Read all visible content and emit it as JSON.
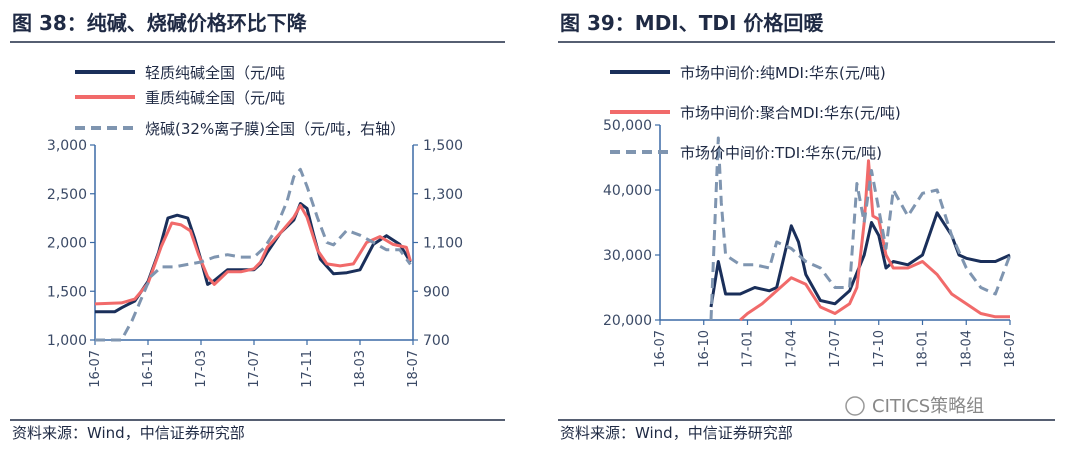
{
  "colors": {
    "navy": "#1a2f5a",
    "red": "#f16a6a",
    "grey": "#7f95b0",
    "axis": "#3b6aa5",
    "rule": "#1f2a44"
  },
  "watermark": "CITICS策略组",
  "chart_data": [
    {
      "type": "line",
      "title": "图 38：纯碱、烧碱价格环比下降",
      "source": "资料来源：Wind，中信证券研究部",
      "x": [
        "16-07",
        "16-11",
        "17-03",
        "17-07",
        "17-11",
        "18-03",
        "18-07"
      ],
      "ylim": [
        1000,
        3000
      ],
      "yticks": [
        "1,000",
        "1,500",
        "2,000",
        "2,500",
        "3,000"
      ],
      "y2lim": [
        700,
        1500
      ],
      "y2ticks": [
        "700",
        "900",
        "1,100",
        "1,300",
        "1,500"
      ],
      "legend": "top-left",
      "series": [
        {
          "name": "轻质纯碱全国（元/吨",
          "color": "navy",
          "dash": false,
          "axis": "left",
          "points": [
            [
              0,
              1290
            ],
            [
              1.5,
              1290
            ],
            [
              2,
              1330
            ],
            [
              3,
              1400
            ],
            [
              4,
              1600
            ],
            [
              4.8,
              1900
            ],
            [
              5.5,
              2250
            ],
            [
              6.2,
              2280
            ],
            [
              7,
              2250
            ],
            [
              7.5,
              2050
            ],
            [
              8,
              1820
            ],
            [
              8.5,
              1570
            ],
            [
              9,
              1610
            ],
            [
              10,
              1720
            ],
            [
              11,
              1720
            ],
            [
              12,
              1720
            ],
            [
              12.5,
              1780
            ],
            [
              13,
              1900
            ],
            [
              14,
              2100
            ],
            [
              15,
              2230
            ],
            [
              15.5,
              2400
            ],
            [
              16,
              2350
            ],
            [
              16.5,
              2080
            ],
            [
              17,
              1830
            ],
            [
              18,
              1680
            ],
            [
              19,
              1690
            ],
            [
              20,
              1720
            ],
            [
              21,
              1980
            ],
            [
              22,
              2070
            ],
            [
              23,
              1980
            ],
            [
              23.8,
              1800
            ]
          ]
        },
        {
          "name": "重质纯碱全国（元/吨",
          "color": "red",
          "dash": false,
          "axis": "left",
          "points": [
            [
              0,
              1370
            ],
            [
              2,
              1380
            ],
            [
              3,
              1420
            ],
            [
              4,
              1580
            ],
            [
              5,
              1960
            ],
            [
              5.8,
              2200
            ],
            [
              6.5,
              2180
            ],
            [
              7.2,
              2120
            ],
            [
              7.8,
              1880
            ],
            [
              8.5,
              1650
            ],
            [
              9,
              1570
            ],
            [
              10,
              1700
            ],
            [
              11,
              1700
            ],
            [
              12,
              1730
            ],
            [
              12.5,
              1800
            ],
            [
              13,
              1950
            ],
            [
              14,
              2100
            ],
            [
              15,
              2260
            ],
            [
              15.5,
              2380
            ],
            [
              16,
              2260
            ],
            [
              16.8,
              1920
            ],
            [
              17.5,
              1780
            ],
            [
              18.5,
              1760
            ],
            [
              19.5,
              1780
            ],
            [
              20.5,
              2000
            ],
            [
              21.5,
              2060
            ],
            [
              22.5,
              1980
            ],
            [
              23.5,
              1950
            ],
            [
              23.8,
              1810
            ]
          ]
        },
        {
          "name": "烧碱(32%离子膜)全国（元/吨，右轴）",
          "color": "grey",
          "dash": true,
          "axis": "right",
          "points": [
            [
              0,
              700
            ],
            [
              2,
              700
            ],
            [
              2.8,
              780
            ],
            [
              3.5,
              870
            ],
            [
              4.2,
              960
            ],
            [
              5,
              1000
            ],
            [
              6,
              1000
            ],
            [
              7,
              1010
            ],
            [
              8,
              1020
            ],
            [
              9,
              1040
            ],
            [
              10,
              1050
            ],
            [
              11,
              1040
            ],
            [
              12,
              1040
            ],
            [
              12.8,
              1080
            ],
            [
              13.5,
              1140
            ],
            [
              14.5,
              1270
            ],
            [
              15,
              1370
            ],
            [
              15.5,
              1400
            ],
            [
              16,
              1330
            ],
            [
              16.8,
              1200
            ],
            [
              17.5,
              1100
            ],
            [
              18,
              1090
            ],
            [
              19,
              1150
            ],
            [
              20,
              1130
            ],
            [
              21,
              1100
            ],
            [
              22,
              1070
            ],
            [
              23,
              1070
            ],
            [
              23.8,
              1010
            ]
          ]
        }
      ]
    },
    {
      "type": "line",
      "title": "图 39：MDI、TDI 价格回暖",
      "source": "资料来源：Wind，中信证券研究部",
      "x": [
        "16-07",
        "16-10",
        "17-01",
        "17-04",
        "17-07",
        "17-10",
        "18-01",
        "18-04",
        "18-07"
      ],
      "ylim": [
        20000,
        50000
      ],
      "yticks": [
        "20,000",
        "30,000",
        "40,000",
        "50,000"
      ],
      "legend": "top-left",
      "series": [
        {
          "name": "市场中间价:纯MDI:华东(元/吨)",
          "color": "navy",
          "dash": false,
          "points": [
            [
              3.5,
              22000
            ],
            [
              4,
              29000
            ],
            [
              4.5,
              24000
            ],
            [
              5.5,
              24000
            ],
            [
              6.5,
              25000
            ],
            [
              7.5,
              24500
            ],
            [
              8,
              25000
            ],
            [
              9,
              34500
            ],
            [
              9.5,
              32000
            ],
            [
              10,
              27000
            ],
            [
              11,
              23000
            ],
            [
              12,
              22500
            ],
            [
              13,
              24500
            ],
            [
              14,
              30000
            ],
            [
              14.5,
              35000
            ],
            [
              15,
              33000
            ],
            [
              15.5,
              28000
            ],
            [
              16,
              29000
            ],
            [
              17,
              28500
            ],
            [
              18,
              30000
            ],
            [
              19,
              36500
            ],
            [
              20,
              33000
            ],
            [
              20.5,
              30000
            ],
            [
              21,
              29500
            ],
            [
              22,
              29000
            ],
            [
              23,
              29000
            ],
            [
              24,
              30000
            ]
          ]
        },
        {
          "name": "市场中间价:聚合MDI:华东(元/吨)",
          "color": "red",
          "dash": false,
          "points": [
            [
              5.5,
              20000
            ],
            [
              6,
              21000
            ],
            [
              7,
              22500
            ],
            [
              8,
              24500
            ],
            [
              9,
              26500
            ],
            [
              10,
              25500
            ],
            [
              11,
              22000
            ],
            [
              12,
              21000
            ],
            [
              13,
              22500
            ],
            [
              13.5,
              25000
            ],
            [
              14,
              35000
            ],
            [
              14.3,
              44500
            ],
            [
              14.6,
              36000
            ],
            [
              15,
              35500
            ],
            [
              15.5,
              30000
            ],
            [
              16,
              28000
            ],
            [
              17,
              28000
            ],
            [
              18,
              29000
            ],
            [
              19,
              27000
            ],
            [
              20,
              24000
            ],
            [
              21,
              22500
            ],
            [
              22,
              21000
            ],
            [
              23,
              20500
            ],
            [
              24,
              20500
            ]
          ]
        },
        {
          "name": "市场价中间价:TDI:华东(元/吨)",
          "color": "grey",
          "dash": true,
          "points": [
            [
              3.5,
              20000
            ],
            [
              4,
              48000
            ],
            [
              4.2,
              38000
            ],
            [
              4.5,
              30000
            ],
            [
              5.5,
              28500
            ],
            [
              6.5,
              28500
            ],
            [
              7.5,
              28000
            ],
            [
              8,
              32000
            ],
            [
              9,
              31000
            ],
            [
              10,
              29000
            ],
            [
              11,
              28000
            ],
            [
              12,
              25000
            ],
            [
              13,
              25000
            ],
            [
              13.5,
              41000
            ],
            [
              14,
              35000
            ],
            [
              14.5,
              43000
            ],
            [
              15,
              37000
            ],
            [
              15.5,
              31000
            ],
            [
              16,
              40000
            ],
            [
              17,
              36000
            ],
            [
              18,
              39500
            ],
            [
              19,
              40000
            ],
            [
              20,
              33000
            ],
            [
              21,
              28000
            ],
            [
              22,
              25000
            ],
            [
              23,
              24000
            ],
            [
              24,
              30000
            ]
          ]
        }
      ]
    }
  ]
}
